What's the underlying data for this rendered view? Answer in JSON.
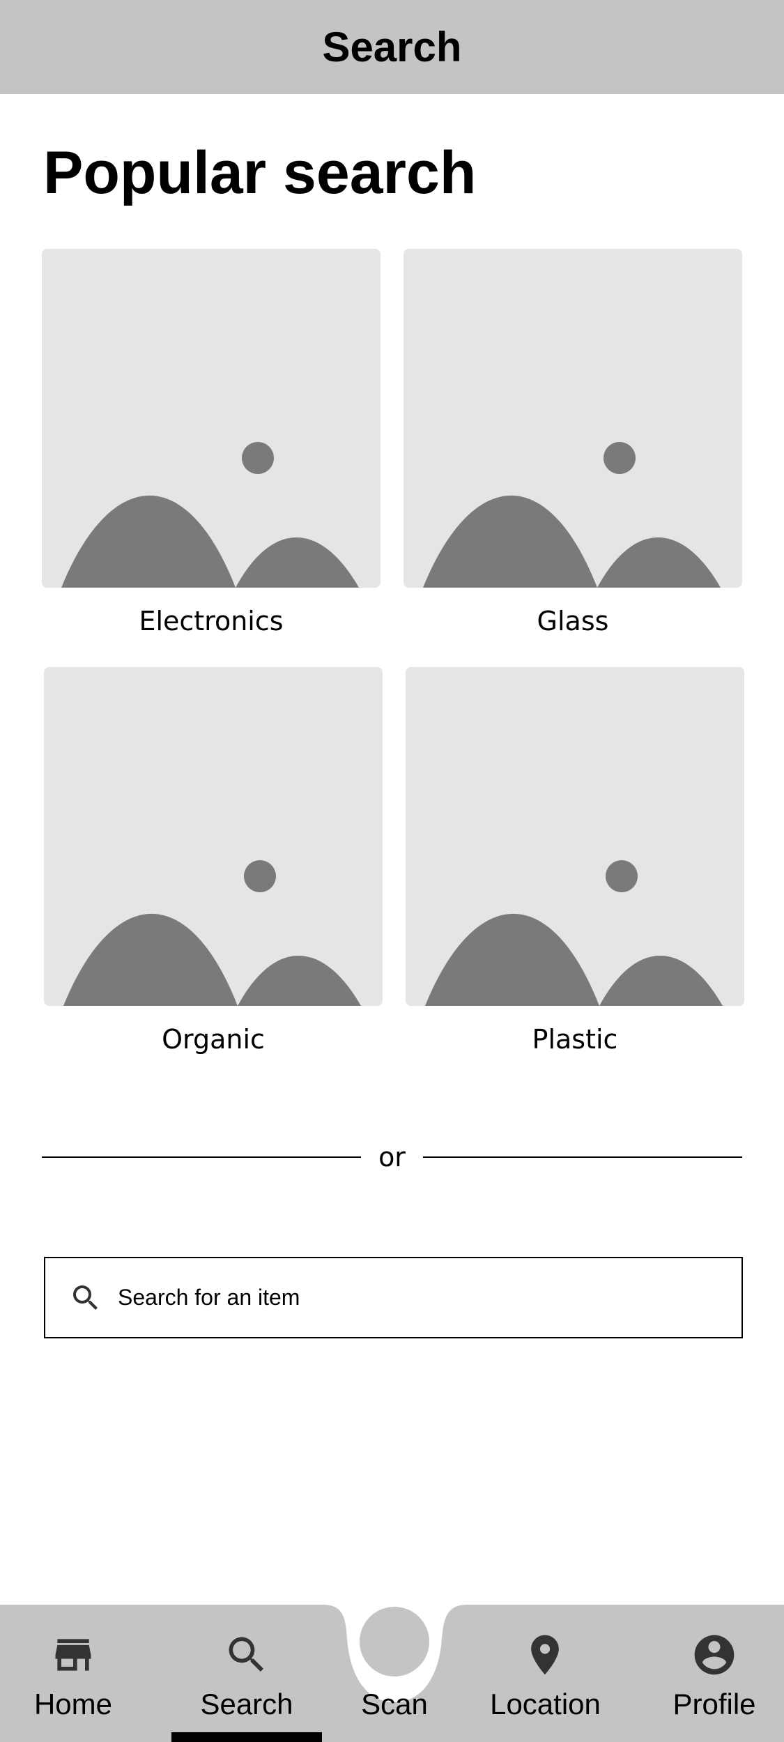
{
  "header": {
    "title": "Search"
  },
  "popular": {
    "title": "Popular search",
    "items": [
      {
        "label": "Electronics",
        "image_icon": "image-placeholder-icon"
      },
      {
        "label": "Glass",
        "image_icon": "image-placeholder-icon"
      },
      {
        "label": "Organic",
        "image_icon": "image-placeholder-icon"
      },
      {
        "label": "Plastic",
        "image_icon": "image-placeholder-icon"
      }
    ]
  },
  "divider": {
    "text": "or"
  },
  "search": {
    "placeholder": "Search for an item",
    "icon": "search-icon"
  },
  "bottom_nav": {
    "active": "Search",
    "items": [
      {
        "label": "Home",
        "icon": "store-icon"
      },
      {
        "label": "Search",
        "icon": "search-icon"
      },
      {
        "label": "Scan",
        "icon": "scan-button"
      },
      {
        "label": "Location",
        "icon": "location-pin-icon"
      },
      {
        "label": "Profile",
        "icon": "account-circle-icon"
      }
    ]
  },
  "colors": {
    "header_bg": "#c4c4c4",
    "nav_bg": "#c4c4c4",
    "placeholder_bg": "#e5e5e5",
    "placeholder_shape": "#7a7a7a",
    "icon": "#333333",
    "text": "#000000"
  }
}
